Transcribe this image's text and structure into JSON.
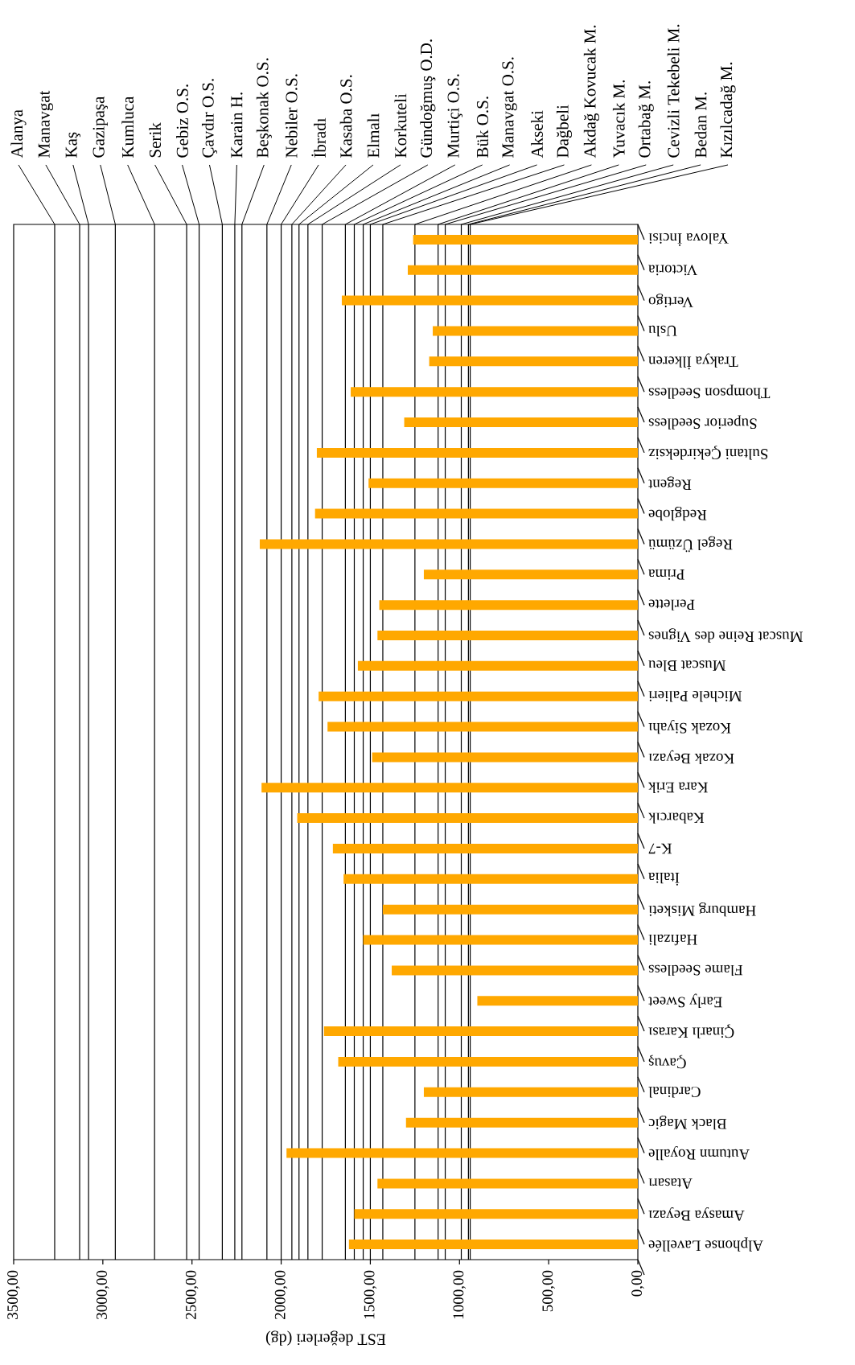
{
  "chart_data": {
    "type": "bar",
    "orientation": "horizontal",
    "color": "#ffa800",
    "xlabel": "EST değerleri (dg)",
    "categories": [
      "Yalova İncisi",
      "Victoria",
      "Vertigo",
      "Uslu",
      "Trakya İlkeren",
      "Thompson Seedless",
      "Superior Seedless",
      "Sultani Çekirdeksiz",
      "Regent",
      "Redglobe",
      "Regel Üzümü",
      "Prima",
      "Perlette",
      "Muscat Reine des Vignes",
      "Muscat Bleu",
      "Michele Palieri",
      "Kozak Siyahı",
      "Kozak Beyazı",
      "Kara Erik",
      "Kabarcık",
      "K-7",
      "İtalia",
      "Hamburg Misketi",
      "Hafızali",
      "Flame Seedless",
      "Early Sweet",
      "Çinarlı Karası",
      "Çavuş",
      "Cardinal",
      "Black Magic",
      "Autumn Royalle",
      "Atasarı",
      "Amasya Beyazı",
      "Alphonse Lavellée"
    ],
    "values": [
      1260,
      1290,
      1660,
      1150,
      1170,
      1610,
      1310,
      1800,
      1510,
      1810,
      2120,
      1200,
      1450,
      1460,
      1570,
      1790,
      1740,
      1490,
      2110,
      1910,
      1710,
      1650,
      1430,
      1540,
      1380,
      900,
      1760,
      1680,
      1200,
      1300,
      1970,
      1460,
      1590,
      1620
    ],
    "xlim": [
      3500,
      0
    ],
    "xticks": [
      {
        "value": 0,
        "label": "0,00"
      },
      {
        "value": 500,
        "label": "500,00"
      },
      {
        "value": 1000,
        "label": "1000,00"
      },
      {
        "value": 1500,
        "label": "1500,00"
      },
      {
        "value": 2000,
        "label": "2000,00"
      },
      {
        "value": 2500,
        "label": "2500,00"
      },
      {
        "value": 3000,
        "label": "3000,00"
      },
      {
        "value": 3500,
        "label": "3500,00"
      }
    ],
    "ref_lines": [
      {
        "axis": "x",
        "value": 3270,
        "label": "Alanya"
      },
      {
        "axis": "x",
        "value": 3130,
        "label": "Manavgat"
      },
      {
        "axis": "x",
        "value": 3080,
        "label": "Kaş"
      },
      {
        "axis": "x",
        "value": 2930,
        "label": "Gazipaşa"
      },
      {
        "axis": "x",
        "value": 2710,
        "label": "Kumluca"
      },
      {
        "axis": "x",
        "value": 2530,
        "label": "Serik"
      },
      {
        "axis": "x",
        "value": 2460,
        "label": "Gebiz O.S."
      },
      {
        "axis": "x",
        "value": 2330,
        "label": "Çavdır O.S."
      },
      {
        "axis": "x",
        "value": 2260,
        "label": "Karain H."
      },
      {
        "axis": "x",
        "value": 2220,
        "label": "Beşkonak O.S."
      },
      {
        "axis": "x",
        "value": 2080,
        "label": "Nebiler O.S."
      },
      {
        "axis": "x",
        "value": 2000,
        "label": "İbradı"
      },
      {
        "axis": "x",
        "value": 1940,
        "label": "Kasaba O.S."
      },
      {
        "axis": "x",
        "value": 1900,
        "label": "Elmalı"
      },
      {
        "axis": "x",
        "value": 1850,
        "label": "Korkuteli"
      },
      {
        "axis": "x",
        "value": 1770,
        "label": "Gündoğmuş O.D."
      },
      {
        "axis": "x",
        "value": 1640,
        "label": "Murtiçi O.S."
      },
      {
        "axis": "x",
        "value": 1590,
        "label": "Bük O.S."
      },
      {
        "axis": "x",
        "value": 1540,
        "label": "Manavgat O.S."
      },
      {
        "axis": "x",
        "value": 1500,
        "label": "Akseki"
      },
      {
        "axis": "x",
        "value": 1430,
        "label": "Dağbeli"
      },
      {
        "axis": "x",
        "value": 1250,
        "label": "Akdağ Kovucak M."
      },
      {
        "axis": "x",
        "value": 1120,
        "label": "Yuvacık M."
      },
      {
        "axis": "x",
        "value": 1080,
        "label": "Ortabağ M."
      },
      {
        "axis": "x",
        "value": 990,
        "label": "Cevizli Tekebeli M."
      },
      {
        "axis": "x",
        "value": 950,
        "label": "Bedan M."
      },
      {
        "axis": "x",
        "value": 940,
        "label": "Kızılcadağ M."
      }
    ]
  }
}
